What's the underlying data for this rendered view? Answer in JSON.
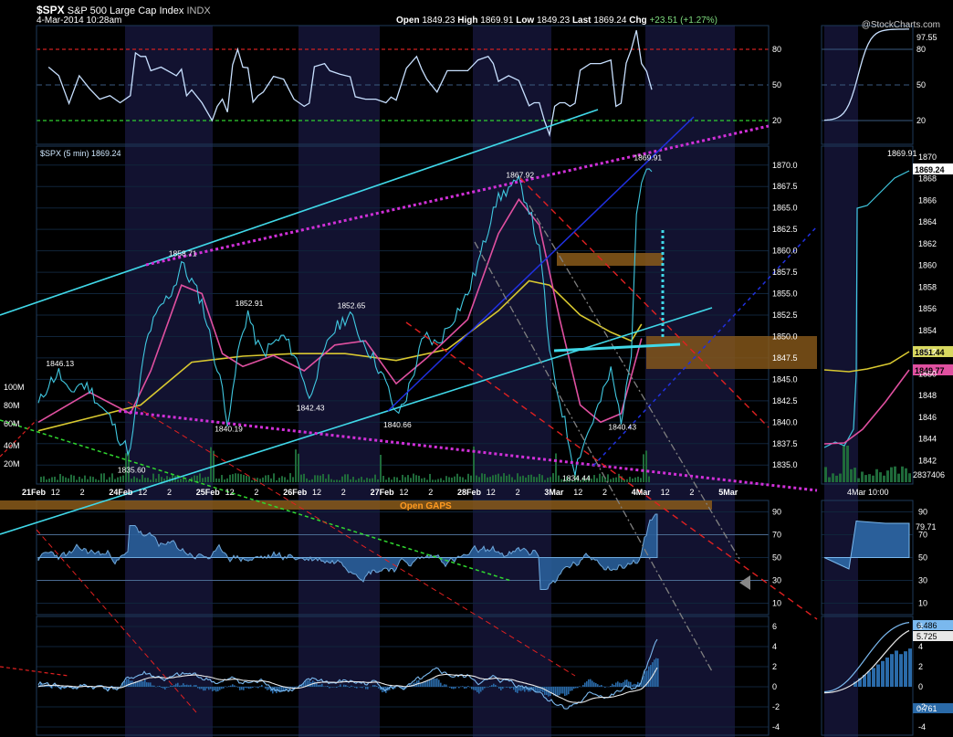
{
  "header": {
    "symbol": "$SPX",
    "name": "S&P 500 Large Cap Index",
    "exchange": "INDX",
    "date": "4-Mar-2014 10:28am",
    "open_label": "Open",
    "open": "1849.23",
    "high_label": "High",
    "high": "1869.91",
    "low_label": "Low",
    "low": "1849.23",
    "last_label": "Last",
    "last": "1869.24",
    "chg_label": "Chg",
    "chg": "+23.51 (+1.27%)",
    "logo": "@StockCharts.com"
  },
  "colors": {
    "price": "#40c8e0",
    "ma_fast": "#e050a0",
    "ma_slow": "#d8c830",
    "trend_cyan": "#40d8e8",
    "trend_magenta": "#d030d8",
    "trend_red": "#e02020",
    "trend_blue": "#2030e0",
    "trend_green": "#30d830",
    "trend_gray": "#808080",
    "gap_box": "#8a5a1a",
    "volume": "#1f6a3a",
    "panel_line": "#1e3a5a"
  },
  "gaps_label": "Open GAPS",
  "rsi_top": {
    "ticks": [
      "80",
      "50",
      "20"
    ],
    "current": "97.55"
  },
  "price_panel": {
    "label": "$SPX (5 min) 1869.24",
    "volume_ticks": [
      "100M",
      "80M",
      "60M",
      "40M",
      "20M"
    ],
    "annotations": [
      "1846.13",
      "1858.71",
      "1852.91",
      "1852.65",
      "1842.43",
      "1840.19",
      "1840.66",
      "1835.60",
      "1867.92",
      "1834.44",
      "1840.43",
      "1869.91"
    ]
  },
  "right_main_ticks": [
    "1870",
    "1868",
    "1866",
    "1864",
    "1862",
    "1860",
    "1858",
    "1856",
    "1854",
    "1852",
    "1850",
    "1848",
    "1846",
    "1844",
    "1842"
  ],
  "right_main_labels": {
    "high": "1869.91",
    "last": "1869.24",
    "slow": "1851.44",
    "fast": "1849.77",
    "volume": "2837406"
  },
  "right_x_label": "4Mar 10:00",
  "rsi_mid": {
    "ticks": [
      "90",
      "70",
      "50",
      "30",
      "10"
    ],
    "current": "79.71"
  },
  "macd": {
    "ticks": [
      "6",
      "4",
      "2",
      "0",
      "-2",
      "-4"
    ],
    "values": [
      "6.486",
      "5.725",
      "0.761"
    ]
  },
  "chart_data": {
    "type": "line",
    "title": "$SPX (5 min)",
    "x_labels": [
      "21Feb",
      "12",
      "2",
      "24Feb",
      "12",
      "2",
      "25Feb",
      "12",
      "2",
      "26Feb",
      "12",
      "2",
      "27Feb",
      "12",
      "2",
      "28Feb",
      "12",
      "2",
      "3Mar",
      "12",
      "2",
      "4Mar",
      "12",
      "2",
      "5Mar"
    ],
    "ylim": [
      1833,
      1872
    ],
    "y_ticks": [
      "1870.0",
      "1867.5",
      "1865.0",
      "1862.5",
      "1860.0",
      "1857.5",
      "1855.0",
      "1852.5",
      "1850.0",
      "1847.5",
      "1845.0",
      "1842.5",
      "1840.0",
      "1837.5",
      "1835.0"
    ],
    "series": [
      {
        "name": "$SPX (5 min)",
        "points": [
          [
            0,
            1842
          ],
          [
            2,
            1844.5
          ],
          [
            4,
            1845.8
          ],
          [
            6,
            1843.2
          ],
          [
            8,
            1844.5
          ],
          [
            10,
            1844
          ],
          [
            12,
            1842
          ],
          [
            14,
            1840.5
          ],
          [
            16,
            1838
          ],
          [
            18,
            1836.5
          ],
          [
            19,
            1841
          ],
          [
            20,
            1845
          ],
          [
            21,
            1849
          ],
          [
            22,
            1851
          ],
          [
            24,
            1853.5
          ],
          [
            26,
            1855.2
          ],
          [
            27,
            1856.5
          ],
          [
            28,
            1858.71
          ],
          [
            29,
            1857.2
          ],
          [
            30,
            1856.5
          ],
          [
            32,
            1854
          ],
          [
            34,
            1849
          ],
          [
            35,
            1846
          ],
          [
            36,
            1844
          ],
          [
            37,
            1840.19
          ],
          [
            38,
            1843
          ],
          [
            39,
            1848
          ],
          [
            40,
            1850.5
          ],
          [
            41,
            1852.91
          ],
          [
            42,
            1850.5
          ],
          [
            43,
            1849
          ],
          [
            44,
            1848
          ],
          [
            46,
            1849.2
          ],
          [
            48,
            1850
          ],
          [
            50,
            1848
          ],
          [
            52,
            1845
          ],
          [
            53,
            1842.43
          ],
          [
            54,
            1845
          ],
          [
            56,
            1848
          ],
          [
            57,
            1850
          ],
          [
            59,
            1851.5
          ],
          [
            61,
            1852.65
          ],
          [
            62,
            1851
          ],
          [
            64,
            1849
          ],
          [
            66,
            1847
          ],
          [
            68,
            1844.5
          ],
          [
            69,
            1842.8
          ],
          [
            70,
            1840.66
          ],
          [
            72,
            1843
          ],
          [
            74,
            1847
          ],
          [
            75,
            1849.2
          ],
          [
            76,
            1850
          ],
          [
            78,
            1849
          ],
          [
            80,
            1851
          ],
          [
            82,
            1853
          ],
          [
            84,
            1855
          ],
          [
            86,
            1858.5
          ],
          [
            88,
            1862.5
          ],
          [
            89,
            1865.5
          ],
          [
            90,
            1866
          ],
          [
            92,
            1867.3
          ],
          [
            94,
            1867.92
          ],
          [
            96,
            1865
          ],
          [
            97,
            1862.5
          ],
          [
            98,
            1860
          ],
          [
            99,
            1855
          ],
          [
            100,
            1848
          ],
          [
            101,
            1845
          ],
          [
            102,
            1842.5
          ],
          [
            103,
            1840
          ],
          [
            104,
            1837
          ],
          [
            105,
            1834.44
          ],
          [
            106,
            1836.5
          ],
          [
            108,
            1839.5
          ],
          [
            110,
            1842.5
          ],
          [
            112,
            1846
          ],
          [
            113,
            1843
          ],
          [
            114,
            1840.43
          ],
          [
            115,
            1843.5
          ],
          [
            116,
            1848.5
          ],
          [
            117,
            1865
          ],
          [
            118,
            1868
          ],
          [
            119,
            1869.91
          ],
          [
            120,
            1869.24
          ]
        ]
      },
      {
        "name": "MA fast",
        "points": [
          [
            0,
            1840
          ],
          [
            10,
            1843.5
          ],
          [
            18,
            1841
          ],
          [
            22,
            1846
          ],
          [
            28,
            1856
          ],
          [
            32,
            1855
          ],
          [
            36,
            1848
          ],
          [
            40,
            1846.5
          ],
          [
            46,
            1847.8
          ],
          [
            52,
            1846
          ],
          [
            58,
            1849
          ],
          [
            64,
            1849.5
          ],
          [
            70,
            1844.5
          ],
          [
            76,
            1847.5
          ],
          [
            84,
            1852
          ],
          [
            90,
            1862
          ],
          [
            94,
            1866
          ],
          [
            98,
            1863
          ],
          [
            102,
            1852
          ],
          [
            106,
            1842
          ],
          [
            110,
            1840
          ],
          [
            114,
            1841
          ],
          [
            118,
            1849.77
          ]
        ]
      },
      {
        "name": "MA slow",
        "points": [
          [
            0,
            1839
          ],
          [
            10,
            1840.5
          ],
          [
            20,
            1842
          ],
          [
            30,
            1847
          ],
          [
            40,
            1847.7
          ],
          [
            50,
            1848
          ],
          [
            60,
            1848
          ],
          [
            70,
            1847.2
          ],
          [
            80,
            1848.5
          ],
          [
            90,
            1853
          ],
          [
            96,
            1856.5
          ],
          [
            100,
            1856
          ],
          [
            106,
            1852.5
          ],
          [
            112,
            1850.5
          ],
          [
            116,
            1849.5
          ],
          [
            118,
            1851.44
          ]
        ]
      }
    ]
  }
}
